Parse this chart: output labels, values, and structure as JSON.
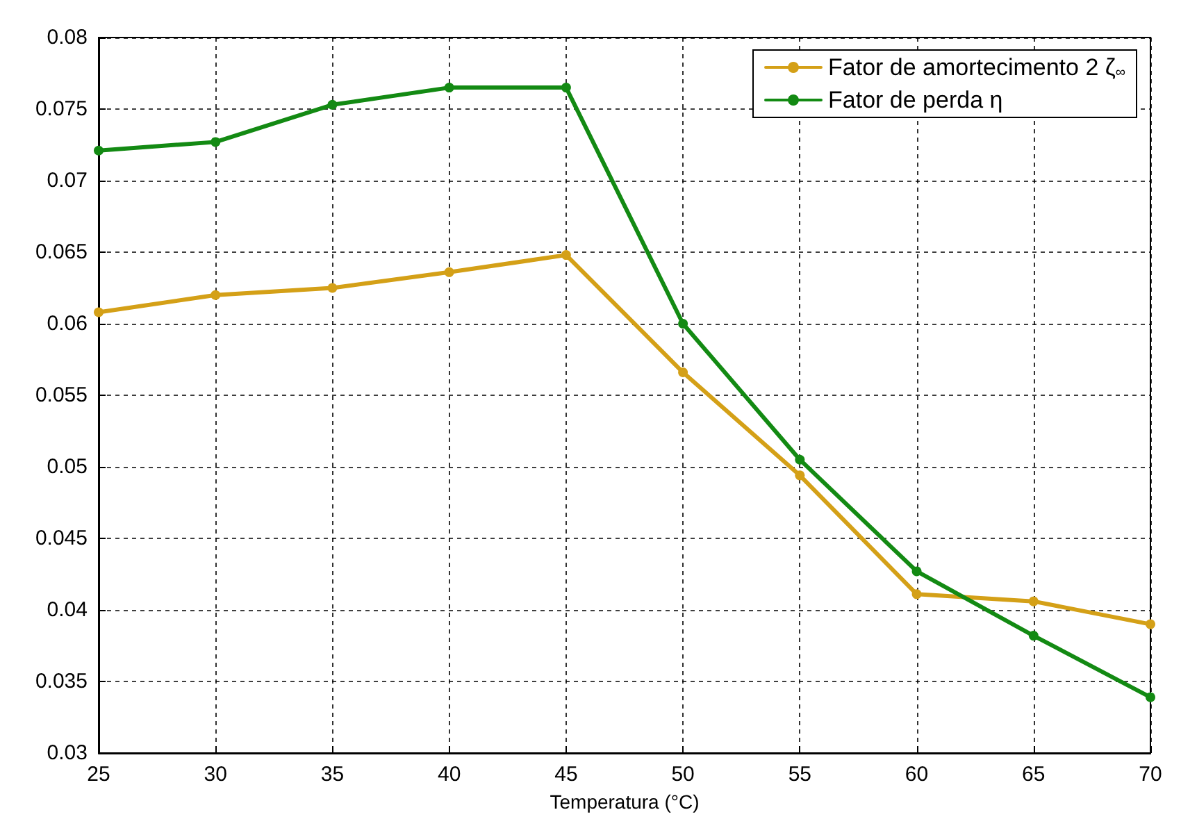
{
  "chart_data": {
    "type": "line",
    "xlabel": "Temperatura (°C)",
    "x": [
      25,
      30,
      35,
      40,
      45,
      50,
      55,
      60,
      65,
      70
    ],
    "series": [
      {
        "name": "Fator de amortecimento 2 ζ$_{∞}$",
        "color": "#d4a017",
        "values": [
          0.0608,
          0.062,
          0.0625,
          0.0636,
          0.0648,
          0.0566,
          0.0494,
          0.0411,
          0.0406,
          0.039
        ]
      },
      {
        "name": "Fator de perda η",
        "color": "#138a13",
        "values": [
          0.0721,
          0.0727,
          0.0753,
          0.0765,
          0.0765,
          0.06,
          0.0505,
          0.0427,
          0.0382,
          0.0339
        ]
      }
    ],
    "xlim": [
      25,
      70
    ],
    "xticks": [
      25,
      30,
      35,
      40,
      45,
      50,
      55,
      60,
      65,
      70
    ],
    "ylim": [
      0.03,
      0.08
    ],
    "yticks": [
      0.03,
      0.035,
      0.04,
      0.045,
      0.05,
      0.055,
      0.06,
      0.065,
      0.07,
      0.075,
      0.08
    ],
    "grid": true,
    "legend": "top right",
    "marker": "circle",
    "line_style": "solid"
  }
}
